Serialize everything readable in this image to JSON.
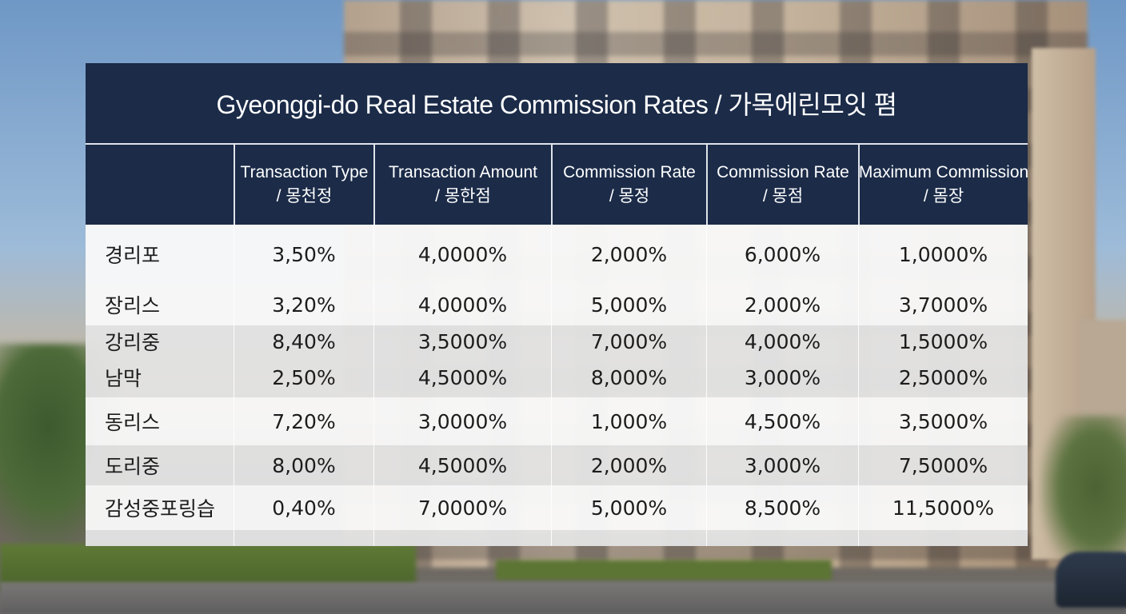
{
  "title": "Gyeonggi-do Real Estate Commission Rates / 가목에린모잇 폄",
  "headers": [
    {
      "line1": "",
      "line2": ""
    },
    {
      "line1": "Transaction Type",
      "line2": "/ 몽천정"
    },
    {
      "line1": "Transaction Amount",
      "line2": "/ 몽한점"
    },
    {
      "line1": "Commission Rate",
      "line2": "/ 몽정"
    },
    {
      "line1": "Commission Rate",
      "line2": "/ 몽점"
    },
    {
      "line1": "Maximum Commission",
      "line2": "/ 몸장"
    }
  ],
  "rows": [
    {
      "name": "경리포",
      "cells": [
        "3,50%",
        "4,0000%",
        "2,000%",
        "6,000%",
        "1,0000%"
      ]
    },
    {
      "name": "장리스",
      "cells": [
        "3,20%",
        "4,0000%",
        "5,000%",
        "2,000%",
        "3,7000%"
      ]
    },
    {
      "name": "강리중",
      "cells": [
        "8,40%",
        "3,5000%",
        "7,000%",
        "4,000%",
        "1,5000%"
      ]
    },
    {
      "name": "남막",
      "cells": [
        "2,50%",
        "4,5000%",
        "8,000%",
        "3,000%",
        "2,5000%"
      ]
    },
    {
      "name": "동리스",
      "cells": [
        "7,20%",
        "3,0000%",
        "1,000%",
        "4,500%",
        "3,5000%"
      ]
    },
    {
      "name": "도리중",
      "cells": [
        "8,00%",
        "4,5000%",
        "2,000%",
        "3,000%",
        "7,5000%"
      ]
    },
    {
      "name": "감성중포링습",
      "cells": [
        "0,40%",
        "7,0000%",
        "5,000%",
        "8,500%",
        "11,5000%"
      ]
    },
    {
      "name": "",
      "cells": [
        "",
        "",
        "",
        "",
        ""
      ]
    }
  ],
  "colors": {
    "header_bg": "#1b2b48",
    "header_text": "#ffffff",
    "row_light": "#f8f8f8",
    "row_gray": "#e2e2e2"
  },
  "background_description": "blurred apartment building, trees and street"
}
